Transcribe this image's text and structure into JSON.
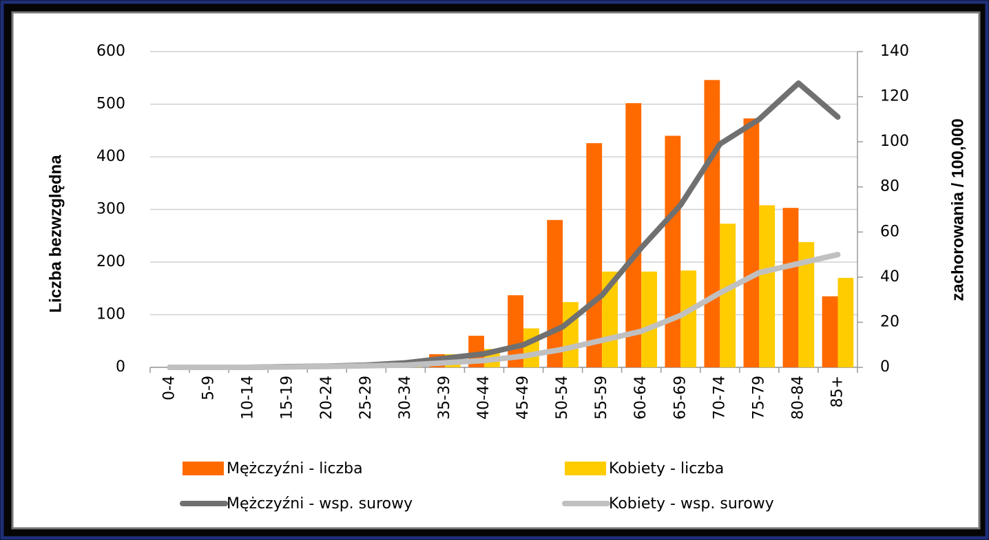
{
  "chart_data": {
    "type": "combo",
    "y_label": "Liczba bezwzględna",
    "y2_label": "zachorowania / 100,000",
    "categories": [
      "0-4",
      "5-9",
      "10-14",
      "15-19",
      "20-24",
      "25-29",
      "30-34",
      "35-39",
      "40-44",
      "45-49",
      "50-54",
      "55-59",
      "60-64",
      "65-69",
      "70-74",
      "75-79",
      "80-84",
      "85+"
    ],
    "series": [
      {
        "name": "Mężczyźni - liczba",
        "type": "bar",
        "color": "#ff6a00",
        "values": [
          0,
          0,
          0,
          0,
          2,
          8,
          12,
          25,
          60,
          137,
          280,
          426,
          502,
          440,
          546,
          473,
          303,
          135
        ]
      },
      {
        "name": "Kobiety - liczba",
        "type": "bar",
        "color": "#ffcc00",
        "values": [
          0,
          0,
          0,
          0,
          1,
          5,
          8,
          25,
          35,
          74,
          124,
          182,
          182,
          184,
          273,
          308,
          238,
          170
        ]
      },
      {
        "name": "Mężczyźni - wsp. surowy",
        "type": "line",
        "axis": "y2",
        "color": "#707070",
        "values": [
          0,
          0,
          0,
          0.3,
          0.5,
          1,
          2,
          4,
          6,
          10,
          18,
          32,
          53,
          72,
          99,
          110,
          126,
          111
        ]
      },
      {
        "name": "Kobiety - wsp. surowy",
        "type": "line",
        "axis": "y2",
        "color": "#c0c0c0",
        "values": [
          0,
          0,
          0,
          0.2,
          0.4,
          0.7,
          1,
          2,
          3,
          5,
          8,
          12,
          16,
          23,
          33,
          42,
          46,
          50
        ]
      }
    ],
    "ylim": [
      0,
      600
    ],
    "yticks": [
      0,
      100,
      200,
      300,
      400,
      500,
      600
    ],
    "y2lim": [
      0,
      140
    ],
    "y2ticks": [
      0,
      20,
      40,
      60,
      80,
      100,
      120,
      140
    ],
    "grid": true
  }
}
